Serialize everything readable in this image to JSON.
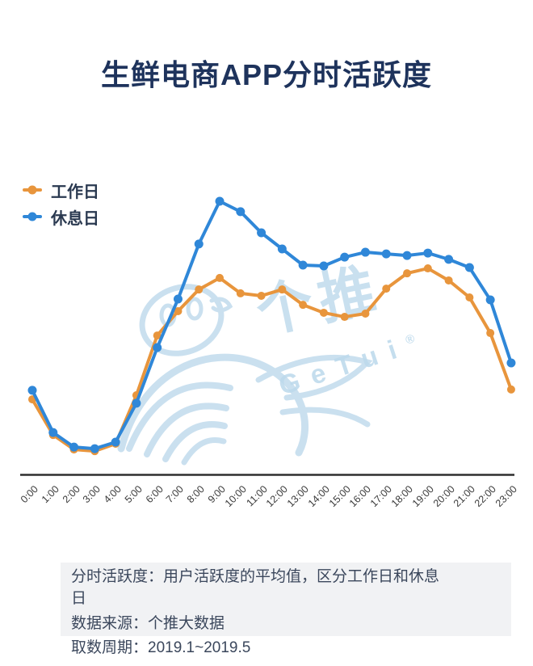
{
  "title": "生鲜电商APP分时活跃度",
  "chart_data": {
    "type": "line",
    "x": [
      "0:00",
      "1:00",
      "2:00",
      "3:00",
      "4:00",
      "5:00",
      "6:00",
      "7:00",
      "8:00",
      "9:00",
      "10:00",
      "11:00",
      "12:00",
      "13:00",
      "14:00",
      "15:00",
      "16:00",
      "17:00",
      "18:00",
      "19:00",
      "20:00",
      "21:00",
      "22:00",
      "23:00"
    ],
    "series": [
      {
        "name": "工作日",
        "color": "#E8953C",
        "values": [
          27.7,
          14.7,
          9.4,
          8.8,
          11.5,
          29.2,
          51,
          59.9,
          67.8,
          72,
          66.4,
          65.5,
          67.8,
          62.2,
          59.3,
          57.8,
          59,
          68.1,
          73.7,
          75.5,
          71.1,
          64.9,
          51.9,
          31.3
        ]
      },
      {
        "name": "休息日",
        "color": "#2F87D8",
        "values": [
          31,
          15.6,
          10.3,
          9.7,
          12.1,
          26.3,
          46.6,
          64.3,
          84.4,
          100,
          96.2,
          88.5,
          82.6,
          76.7,
          76.4,
          79.6,
          81.4,
          80.8,
          80.2,
          81.1,
          78.8,
          75.8,
          64,
          41
        ]
      }
    ],
    "title": "生鲜电商APP分时活跃度",
    "xlabel": "",
    "ylabel": "",
    "ylim": [
      0,
      105
    ],
    "grid": false,
    "legend_position": "top-left",
    "axis_color": "#2e2e2e"
  },
  "watermark": {
    "text_cn": "个推",
    "text_en": "GeTui",
    "reg": "®"
  },
  "footnote": {
    "definition": "分时活跃度：用户活跃度的平均值，区分工作日和休息日",
    "source": "数据来源：个推大数据",
    "period": "取数周期：2019.1~2019.5"
  }
}
